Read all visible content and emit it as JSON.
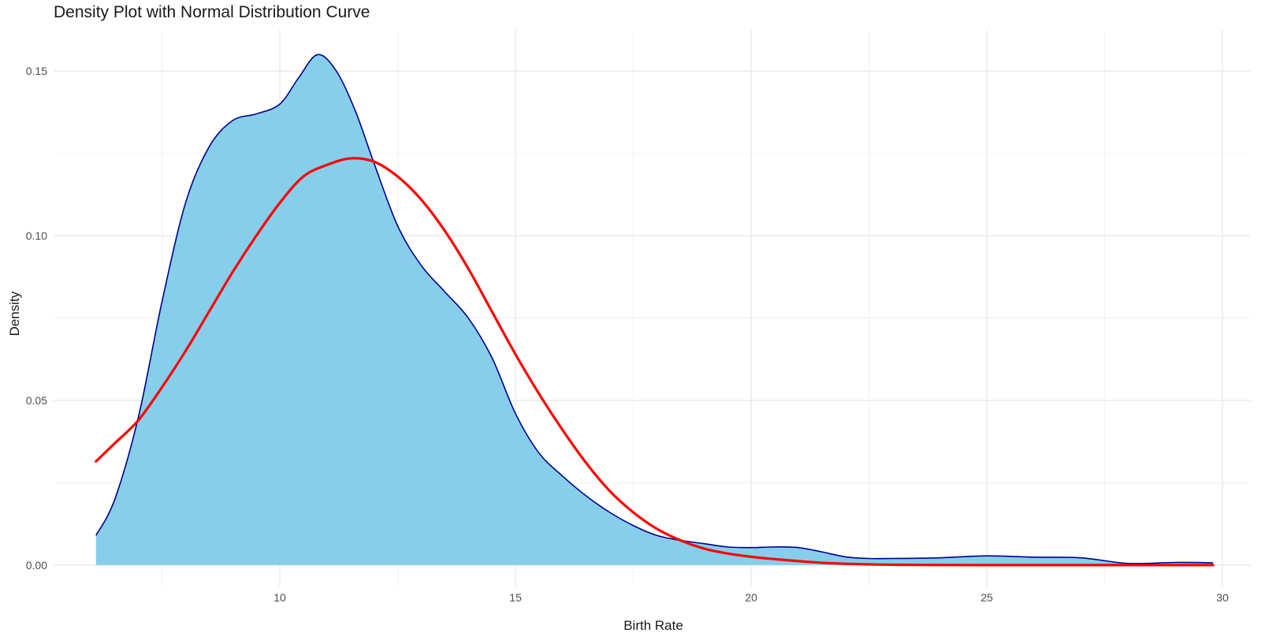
{
  "chart_data": {
    "type": "area",
    "title": "Density Plot with Normal Distribution Curve",
    "xlabel": "Birth Rate",
    "ylabel": "Density",
    "xlim": [
      5.2,
      30.6
    ],
    "ylim": [
      -0.0065,
      0.1625
    ],
    "x_ticks": [
      10,
      15,
      20,
      25,
      30
    ],
    "y_ticks": [
      0.0,
      0.05,
      0.1,
      0.15
    ],
    "x_tick_labels": [
      "10",
      "15",
      "20",
      "25",
      "30"
    ],
    "y_tick_labels": [
      "0.00",
      "0.05",
      "0.10",
      "0.15"
    ],
    "grid": true,
    "legend": "none",
    "colors": {
      "density_fill": "#87ceeb",
      "density_line": "#00008b",
      "normal_line": "#ff0000",
      "grid_major": "#e6e6e6",
      "grid_minor": "#f2f2f2",
      "text": "#4d4d4d"
    },
    "series": [
      {
        "kind": "density-area",
        "x": [
          6.1,
          6.5,
          7.0,
          7.5,
          8.0,
          8.5,
          9.0,
          9.5,
          10.0,
          10.4,
          10.8,
          11.2,
          11.6,
          12.0,
          12.5,
          13.0,
          13.5,
          14.0,
          14.5,
          15.0,
          15.5,
          16.0,
          16.5,
          17.0,
          17.5,
          18.0,
          18.5,
          19.0,
          19.5,
          20.0,
          20.5,
          21.0,
          21.5,
          22.0,
          22.5,
          23.0,
          24.0,
          25.0,
          26.0,
          27.0,
          28.0,
          29.0,
          29.8
        ],
        "values": [
          0.009,
          0.02,
          0.045,
          0.08,
          0.11,
          0.127,
          0.135,
          0.137,
          0.14,
          0.148,
          0.155,
          0.15,
          0.138,
          0.122,
          0.103,
          0.091,
          0.083,
          0.075,
          0.063,
          0.046,
          0.034,
          0.027,
          0.021,
          0.016,
          0.012,
          0.009,
          0.0075,
          0.0065,
          0.0055,
          0.0053,
          0.0055,
          0.0053,
          0.004,
          0.0025,
          0.002,
          0.002,
          0.0022,
          0.0028,
          0.0024,
          0.0022,
          0.0005,
          0.0008,
          0.0007
        ]
      },
      {
        "kind": "normal-line",
        "x": [
          6.1,
          6.5,
          7.0,
          7.5,
          8.0,
          8.5,
          9.0,
          9.5,
          10.0,
          10.5,
          11.0,
          11.5,
          12.0,
          12.5,
          13.0,
          13.5,
          14.0,
          14.5,
          15.0,
          15.5,
          16.0,
          16.5,
          17.0,
          17.5,
          18.0,
          18.5,
          19.0,
          19.5,
          20.0,
          20.5,
          21.0,
          21.5,
          22.0,
          22.5,
          23.0,
          24.0,
          25.0,
          27.0,
          29.8
        ],
        "values": [
          0.0315,
          0.037,
          0.044,
          0.054,
          0.065,
          0.077,
          0.089,
          0.1,
          0.11,
          0.118,
          0.1215,
          0.1235,
          0.1225,
          0.118,
          0.111,
          0.1015,
          0.09,
          0.077,
          0.064,
          0.052,
          0.041,
          0.031,
          0.0225,
          0.016,
          0.011,
          0.0075,
          0.005,
          0.0035,
          0.0025,
          0.0018,
          0.0012,
          0.0007,
          0.0004,
          0.0002,
          0.0001,
          2e-05,
          0.0,
          0.0,
          0.0
        ]
      }
    ]
  }
}
